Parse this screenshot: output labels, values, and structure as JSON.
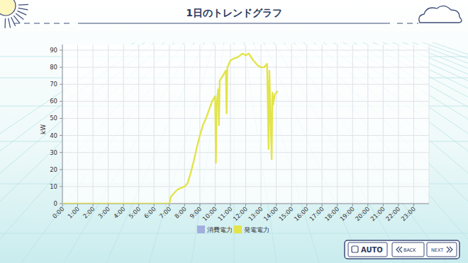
{
  "chart_data": {
    "type": "line",
    "title": "1日のトレンドグラフ",
    "ylabel": "kW",
    "x": [
      0,
      7.0,
      7.1,
      7.3,
      7.5,
      7.7,
      8.0,
      8.2,
      8.4,
      8.6,
      8.8,
      9.0,
      9.2,
      9.4,
      9.6,
      9.8,
      10.0,
      10.05,
      10.1,
      10.2,
      10.25,
      10.3,
      10.5,
      10.7,
      10.75,
      10.8,
      11.0,
      11.2,
      11.5,
      11.8,
      12.0,
      12.2,
      12.5,
      12.8,
      13.0,
      13.2,
      13.4,
      13.5,
      13.55,
      13.6,
      13.7,
      13.75,
      13.8,
      13.9,
      14.0,
      14.1
    ],
    "series": [
      {
        "name": "消費電力",
        "color": "#a3aee0",
        "values": [
          null,
          null,
          null,
          null,
          null,
          null,
          null,
          null,
          null,
          null,
          null,
          null,
          null,
          null,
          null,
          null,
          null,
          null,
          null,
          null,
          null,
          null,
          null,
          null,
          null,
          null,
          null,
          null,
          null,
          null,
          null,
          null,
          null,
          null,
          null,
          null,
          null,
          null,
          null,
          null,
          null,
          null,
          null,
          null,
          null,
          null
        ]
      },
      {
        "name": "発電電力",
        "color": "#e2e44a",
        "values": [
          0,
          0,
          4,
          6,
          8,
          9,
          10,
          12,
          18,
          25,
          33,
          40,
          46,
          50,
          55,
          60,
          63,
          24,
          58,
          67,
          46,
          72,
          75,
          78,
          53,
          80,
          84,
          85,
          86,
          88,
          87,
          88,
          84,
          81,
          80,
          80,
          82,
          32,
          78,
          60,
          26,
          65,
          58,
          64,
          65,
          66
        ]
      }
    ],
    "xlim": [
      0,
      24
    ],
    "xticks": [
      {
        "value": 0,
        "label": "0:00"
      },
      {
        "value": 1,
        "label": "1:00"
      },
      {
        "value": 2,
        "label": "2:00"
      },
      {
        "value": 3,
        "label": "3:00"
      },
      {
        "value": 4,
        "label": "4:00"
      },
      {
        "value": 5,
        "label": "5:00"
      },
      {
        "value": 6,
        "label": "6:00"
      },
      {
        "value": 7,
        "label": "7:00"
      },
      {
        "value": 8,
        "label": "8:00"
      },
      {
        "value": 9,
        "label": "9:00"
      },
      {
        "value": 10,
        "label": "10:00"
      },
      {
        "value": 11,
        "label": "11:00"
      },
      {
        "value": 12,
        "label": "12:00"
      },
      {
        "value": 13,
        "label": "13:00"
      },
      {
        "value": 14,
        "label": "14:00"
      },
      {
        "value": 15,
        "label": "15:00"
      },
      {
        "value": 16,
        "label": "16:00"
      },
      {
        "value": 17,
        "label": "17:00"
      },
      {
        "value": 18,
        "label": "18:00"
      },
      {
        "value": 19,
        "label": "19:00"
      },
      {
        "value": 20,
        "label": "20:00"
      },
      {
        "value": 21,
        "label": "21:00"
      },
      {
        "value": 22,
        "label": "22:00"
      },
      {
        "value": 23,
        "label": "23:00"
      }
    ],
    "ylim": [
      0,
      90
    ],
    "yticks": [
      0,
      10,
      20,
      30,
      40,
      50,
      60,
      70,
      80,
      90
    ],
    "grid": true,
    "legend": "bottom"
  },
  "buttons": [
    "AUTO",
    "BACK",
    "NEXT"
  ]
}
